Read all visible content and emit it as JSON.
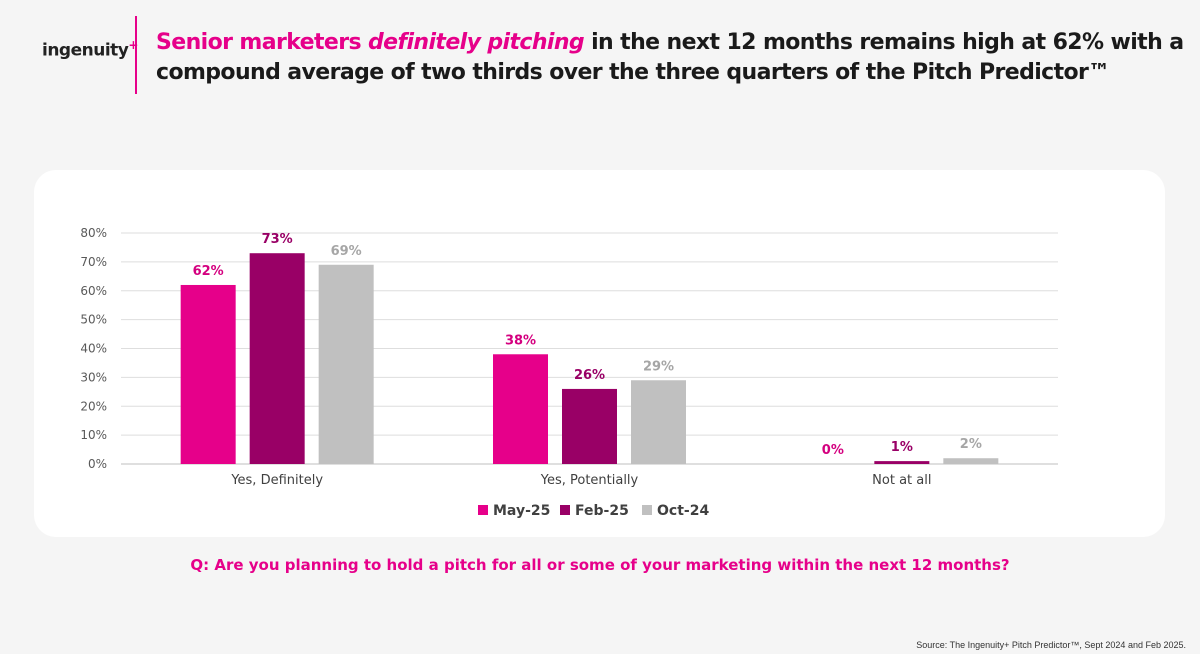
{
  "logo": {
    "text": "ingenuity",
    "plus": "+"
  },
  "headline": {
    "part1": "Senior marketers ",
    "emph": "definitely pitching",
    "part2": " in the next 12 months remains high at 62% with a compound average of two thirds over the three quarters of the Pitch Predictor™"
  },
  "question": "Q: Are you planning to hold a pitch for all or some of your marketing within the next 12 months?",
  "source": "Source: The Ingenuity+ Pitch Predictor™, Sept 2024 and Feb 2025.",
  "colors": {
    "brand": "#e6008a",
    "plum": "#990066",
    "grey": "#c0c0c0"
  },
  "chart_data": {
    "type": "bar",
    "categories": [
      "Yes, Definitely",
      "Yes, Potentially",
      "Not at all"
    ],
    "series": [
      {
        "name": "May-25",
        "values": [
          62,
          38,
          0
        ],
        "labels": [
          "62%",
          "38%",
          "0%"
        ],
        "color": "#e6008a",
        "labelColor": "#d4007f"
      },
      {
        "name": "Feb-25",
        "values": [
          73,
          26,
          1
        ],
        "labels": [
          "73%",
          "26%",
          "1%"
        ],
        "color": "#990066",
        "labelColor": "#990066"
      },
      {
        "name": "Oct-24",
        "values": [
          69,
          29,
          2
        ],
        "labels": [
          "69%",
          "29%",
          "2%"
        ],
        "color": "#c0c0c0",
        "labelColor": "#a6a6a6"
      }
    ],
    "ylim": [
      0,
      80
    ],
    "yticks": [
      "0%",
      "10%",
      "20%",
      "30%",
      "40%",
      "50%",
      "60%",
      "70%",
      "80%"
    ],
    "grid": true,
    "legend_position": "bottom"
  }
}
